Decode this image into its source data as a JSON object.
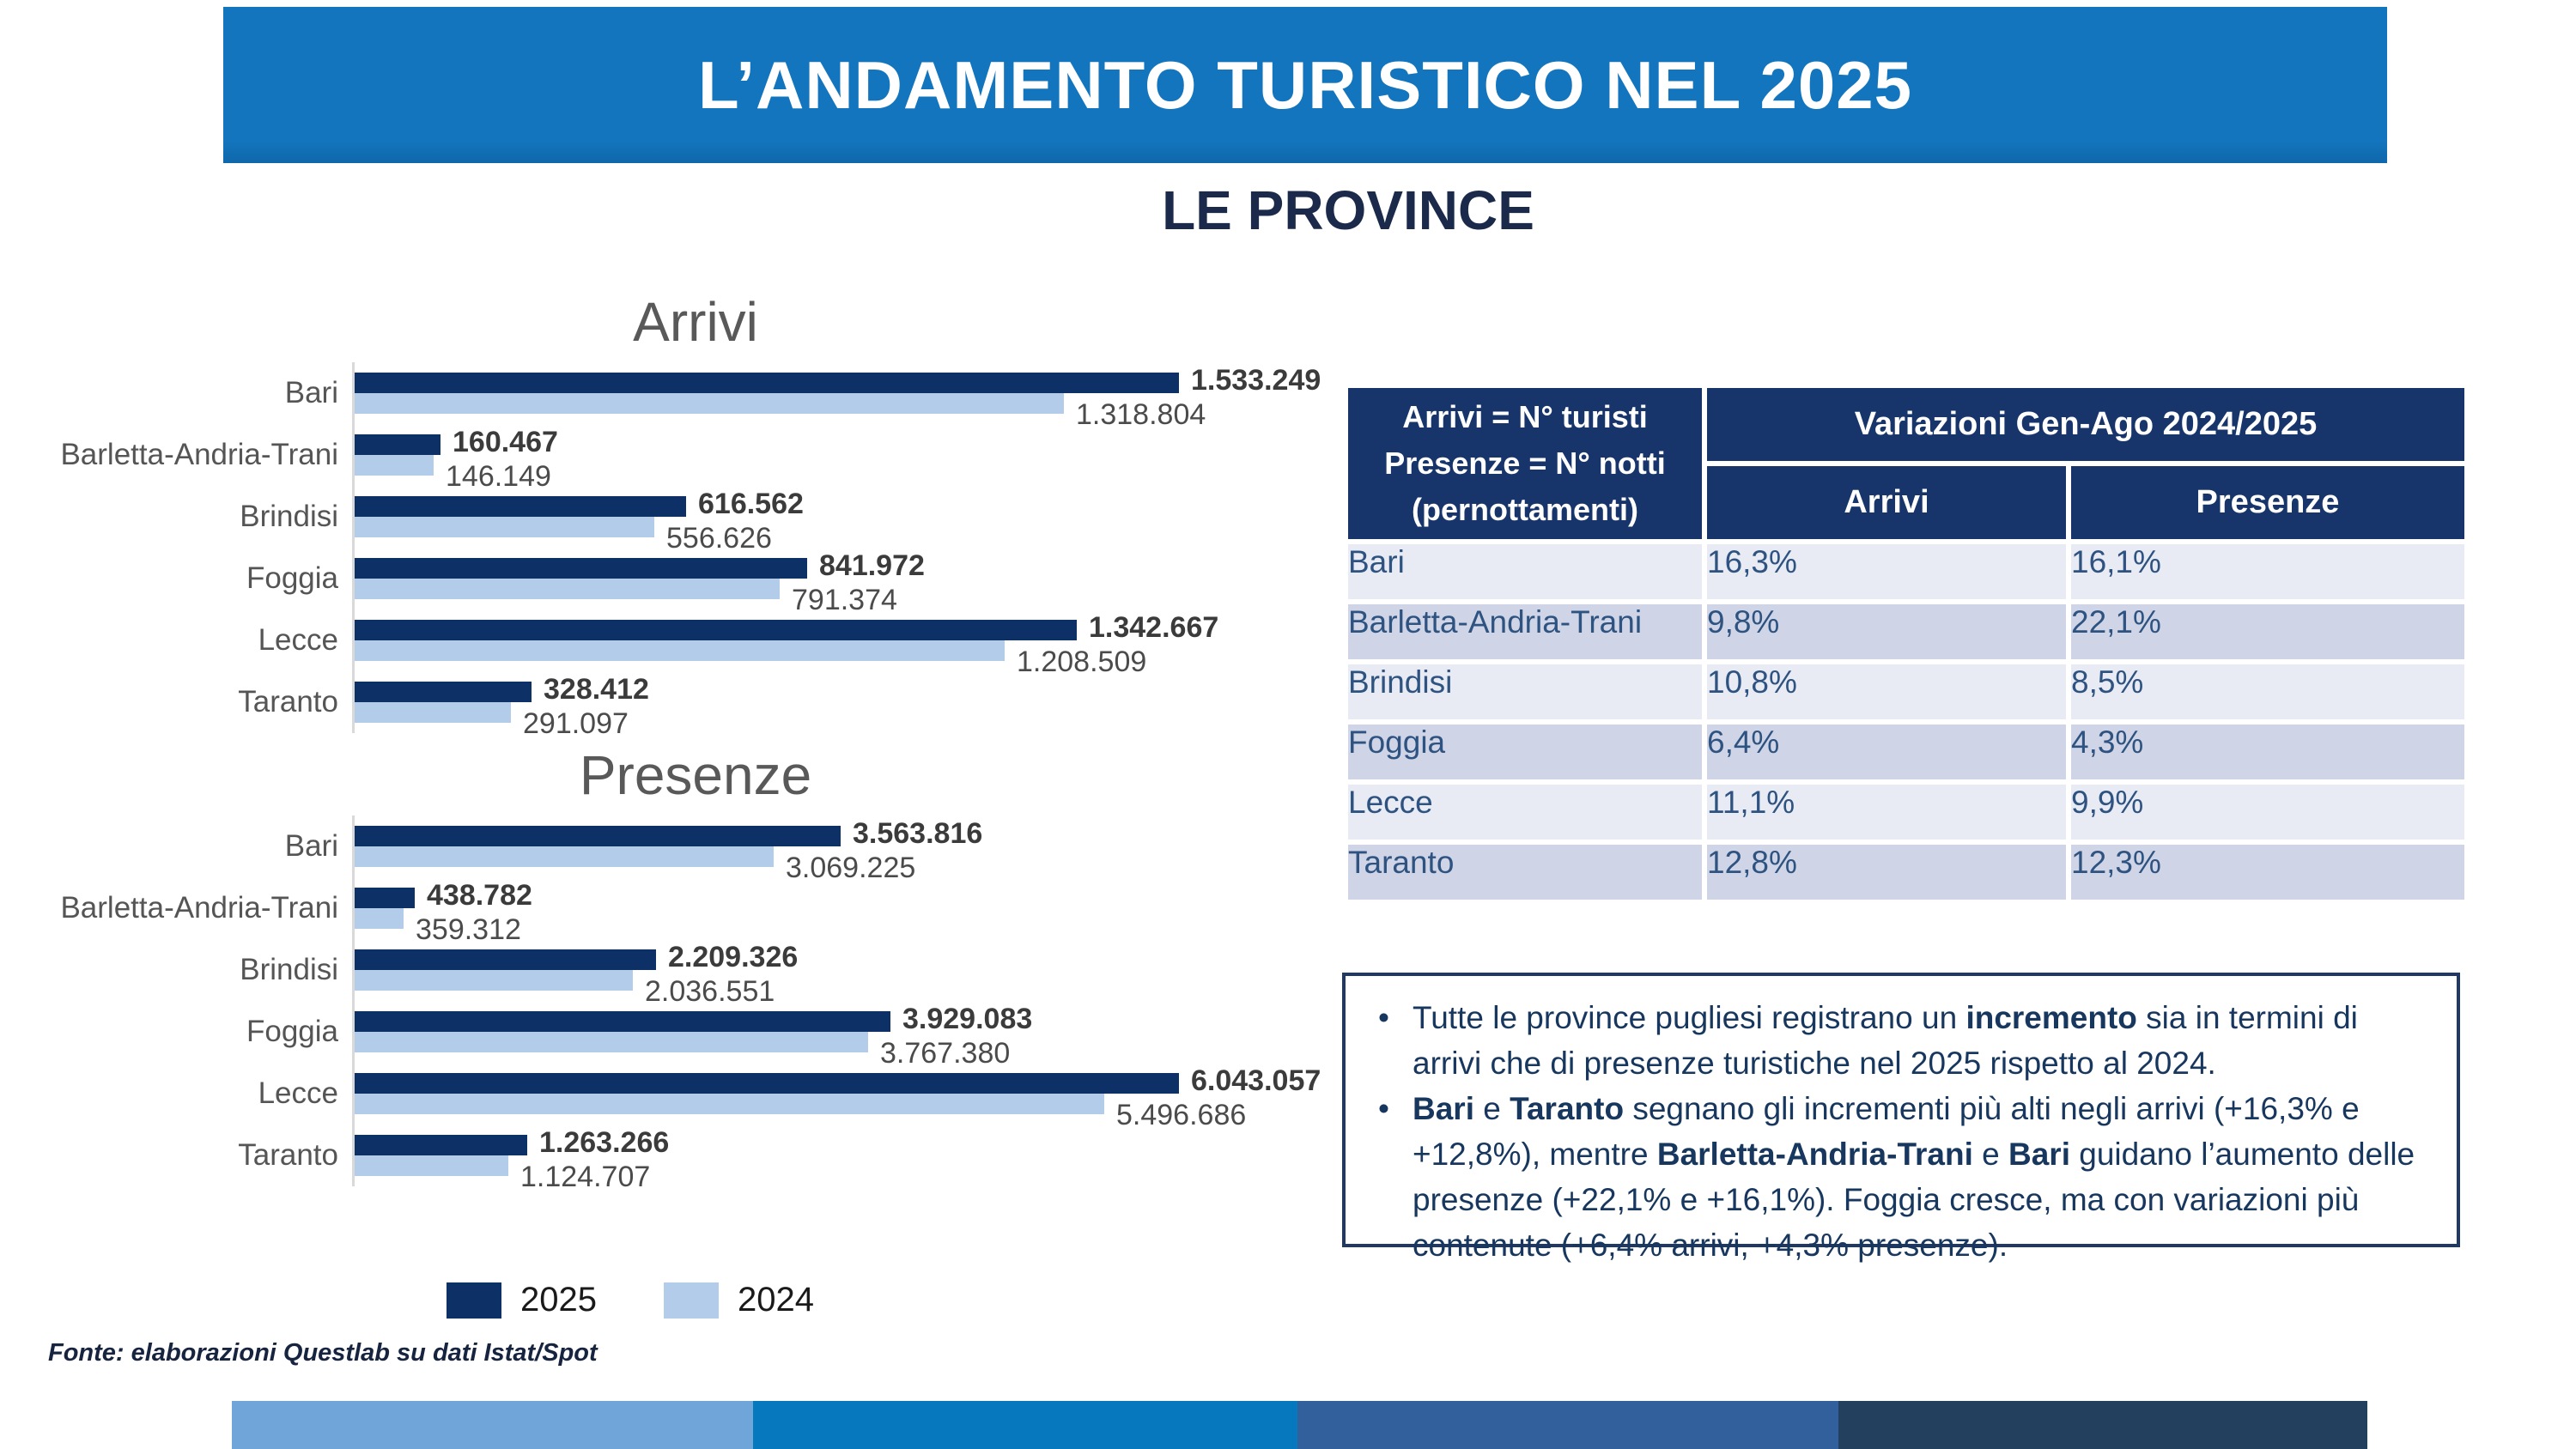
{
  "title": "L’ANDAMENTO TURISTICO NEL 2025",
  "subtitle": "LE PROVINCE",
  "legend": {
    "year_2025": "2025",
    "year_2024": "2024"
  },
  "source": "Fonte: elaborazioni Questlab su dati Istat/Spot",
  "colors": {
    "banner": "#1375BE",
    "navy_2025": "#0D3166",
    "light_2024": "#B3CCE9",
    "table_header": "#17356B",
    "row_light": "#E9EBF4",
    "row_dark": "#CFD5E7",
    "row_text": "#2E5380",
    "notes_border": "#1F3864",
    "notes_text": "#17375E",
    "bottom_bar_segments": [
      "#6FA5D9",
      "#0678BE",
      "#31609C",
      "#24405F"
    ]
  },
  "chart_data": [
    {
      "type": "bar",
      "orientation": "horizontal",
      "title": "Arrivi",
      "categories": [
        "Bari",
        "Barletta-Andria-Trani",
        "Brindisi",
        "Foggia",
        "Lecce",
        "Taranto"
      ],
      "series": [
        {
          "name": "2025",
          "values": [
            1533249,
            160467,
            616562,
            841972,
            1342667,
            328412
          ],
          "labels": [
            "1.533.249",
            "160.467",
            "616.562",
            "841.972",
            "1.342.667",
            "328.412"
          ]
        },
        {
          "name": "2024",
          "values": [
            1318804,
            146149,
            556626,
            791374,
            1208509,
            291097
          ],
          "labels": [
            "1.318.804",
            "146.149",
            "556.626",
            "791.374",
            "1.208.509",
            "291.097"
          ]
        }
      ],
      "xlabel": "",
      "ylabel": "",
      "grid": false,
      "legend_position": "bottom",
      "value_labels": true,
      "xlim": [
        0,
        1600000
      ]
    },
    {
      "type": "bar",
      "orientation": "horizontal",
      "title": "Presenze",
      "categories": [
        "Bari",
        "Barletta-Andria-Trani",
        "Brindisi",
        "Foggia",
        "Lecce",
        "Taranto"
      ],
      "series": [
        {
          "name": "2025",
          "values": [
            3563816,
            438782,
            2209326,
            3929083,
            6043057,
            1263266
          ],
          "labels": [
            "3.563.816",
            "438.782",
            "2.209.326",
            "3.929.083",
            "6.043.057",
            "1.263.266"
          ]
        },
        {
          "name": "2024",
          "values": [
            3069225,
            359312,
            2036551,
            3767380,
            5496686,
            1124707
          ],
          "labels": [
            "3.069.225",
            "359.312",
            "2.036.551",
            "3.767.380",
            "5.496.686",
            "1.124.707"
          ]
        }
      ],
      "xlabel": "",
      "ylabel": "",
      "grid": false,
      "legend_position": "bottom",
      "value_labels": true,
      "xlim": [
        0,
        6300000
      ]
    }
  ],
  "table": {
    "corner_lines": [
      "Arrivi = N° turisti",
      "Presenze = N° notti",
      "(pernottamenti)"
    ],
    "header": "Variazioni Gen-Ago 2024/2025",
    "columns": [
      "Arrivi",
      "Presenze"
    ],
    "rows": [
      {
        "label": "Bari",
        "arrivi": "16,3%",
        "presenze": "16,1%"
      },
      {
        "label": "Barletta-Andria-Trani",
        "arrivi": "9,8%",
        "presenze": "22,1%"
      },
      {
        "label": "Brindisi",
        "arrivi": "10,8%",
        "presenze": "8,5%"
      },
      {
        "label": "Foggia",
        "arrivi": "6,4%",
        "presenze": "4,3%"
      },
      {
        "label": "Lecce",
        "arrivi": "11,1%",
        "presenze": "9,9%"
      },
      {
        "label": "Taranto",
        "arrivi": "12,8%",
        "presenze": "12,3%"
      }
    ]
  },
  "notes": {
    "bullets": [
      [
        {
          "text": "Tutte le province pugliesi registrano un ",
          "bold": false
        },
        {
          "text": "incremento",
          "bold": true
        },
        {
          "text": " sia in termini di arrivi che di presenze turistiche nel 2025 rispetto al 2024.",
          "bold": false
        }
      ],
      [
        {
          "text": "Bari",
          "bold": true
        },
        {
          "text": " e ",
          "bold": false
        },
        {
          "text": "Taranto",
          "bold": true
        },
        {
          "text": " segnano gli incrementi più alti negli arrivi (+16,3% e +12,8%), mentre ",
          "bold": false
        },
        {
          "text": "Barletta-Andria-Trani",
          "bold": true
        },
        {
          "text": " e ",
          "bold": false
        },
        {
          "text": "Bari",
          "bold": true
        },
        {
          "text": " guidano l’aumento delle presenze (+22,1% e +16,1%). Foggia cresce, ma con variazioni più contenute (+6,4% arrivi, +4,3% presenze).",
          "bold": false
        }
      ]
    ]
  }
}
